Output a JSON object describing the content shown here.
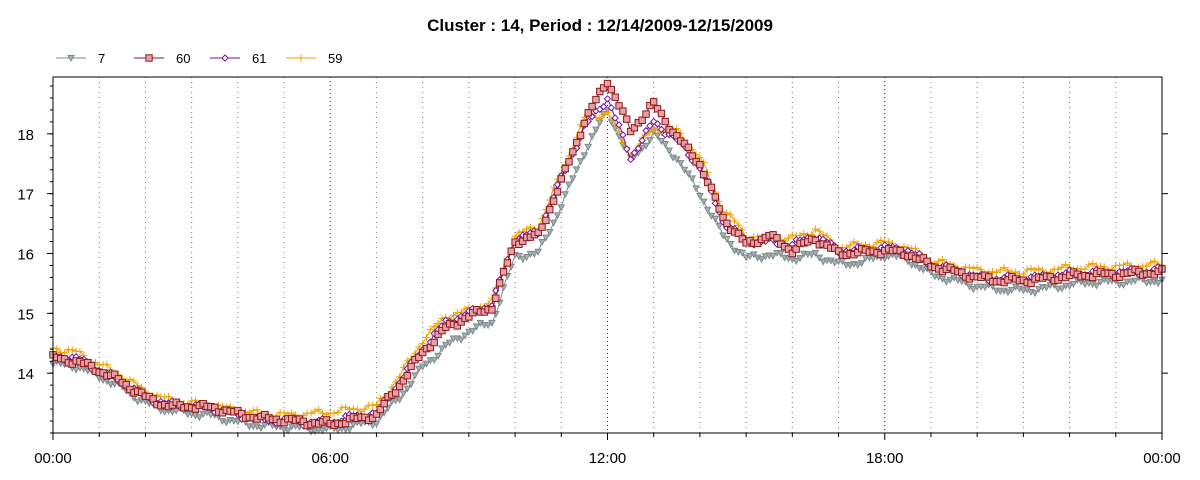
{
  "chart_data": {
    "type": "line",
    "title": "Cluster : 14, Period : 12/14/2009-12/15/2009",
    "xlabel": "",
    "ylabel": "",
    "x_range": [
      "00:00",
      "24:00"
    ],
    "x_tick_labels": [
      "00:00",
      "06:00",
      "12:00",
      "18:00",
      "00:00"
    ],
    "ylim": [
      13.0,
      18.95
    ],
    "y_ticks": [
      14,
      15,
      16,
      17,
      18
    ],
    "grid": true,
    "legend": "top-left",
    "series": [
      {
        "name": "7",
        "color": "#7d8a8c",
        "marker": "triangle-down",
        "points": [
          [
            "00:00",
            14.15
          ],
          [
            "00:30",
            14.12
          ],
          [
            "01:00",
            13.95
          ],
          [
            "01:30",
            13.75
          ],
          [
            "02:00",
            13.5
          ],
          [
            "02:30",
            13.38
          ],
          [
            "03:00",
            13.33
          ],
          [
            "03:30",
            13.28
          ],
          [
            "04:00",
            13.18
          ],
          [
            "04:30",
            13.12
          ],
          [
            "05:00",
            13.1
          ],
          [
            "05:30",
            13.08
          ],
          [
            "06:00",
            13.05
          ],
          [
            "06:30",
            13.12
          ],
          [
            "07:00",
            13.2
          ],
          [
            "07:30",
            13.6
          ],
          [
            "08:00",
            14.1
          ],
          [
            "08:30",
            14.45
          ],
          [
            "09:00",
            14.7
          ],
          [
            "09:30",
            14.85
          ],
          [
            "10:00",
            15.95
          ],
          [
            "10:30",
            16.0
          ],
          [
            "11:00",
            16.8
          ],
          [
            "11:30",
            17.7
          ],
          [
            "12:00",
            18.4
          ],
          [
            "12:30",
            17.55
          ],
          [
            "13:00",
            18.0
          ],
          [
            "13:30",
            17.6
          ],
          [
            "14:00",
            17.0
          ],
          [
            "14:30",
            16.3
          ],
          [
            "15:00",
            15.92
          ],
          [
            "15:30",
            15.98
          ],
          [
            "16:00",
            15.92
          ],
          [
            "16:30",
            15.98
          ],
          [
            "17:00",
            15.82
          ],
          [
            "17:30",
            15.85
          ],
          [
            "18:00",
            15.98
          ],
          [
            "18:30",
            15.9
          ],
          [
            "19:00",
            15.65
          ],
          [
            "19:30",
            15.55
          ],
          [
            "20:00",
            15.45
          ],
          [
            "20:30",
            15.4
          ],
          [
            "21:00",
            15.38
          ],
          [
            "21:30",
            15.42
          ],
          [
            "22:00",
            15.48
          ],
          [
            "22:30",
            15.52
          ],
          [
            "23:00",
            15.52
          ],
          [
            "23:30",
            15.54
          ],
          [
            "24:00",
            15.55
          ]
        ]
      },
      {
        "name": "60",
        "color": "#8b1a1a",
        "marker": "square",
        "points": [
          [
            "00:00",
            14.25
          ],
          [
            "00:30",
            14.2
          ],
          [
            "01:00",
            14.05
          ],
          [
            "01:30",
            13.85
          ],
          [
            "02:00",
            13.6
          ],
          [
            "02:30",
            13.45
          ],
          [
            "03:00",
            13.45
          ],
          [
            "03:30",
            13.42
          ],
          [
            "04:00",
            13.32
          ],
          [
            "04:30",
            13.25
          ],
          [
            "05:00",
            13.22
          ],
          [
            "05:30",
            13.18
          ],
          [
            "06:00",
            13.15
          ],
          [
            "06:30",
            13.22
          ],
          [
            "07:00",
            13.3
          ],
          [
            "07:30",
            13.8
          ],
          [
            "08:00",
            14.35
          ],
          [
            "08:30",
            14.75
          ],
          [
            "09:00",
            14.95
          ],
          [
            "09:30",
            15.1
          ],
          [
            "10:00",
            16.2
          ],
          [
            "10:30",
            16.3
          ],
          [
            "11:00",
            17.2
          ],
          [
            "11:30",
            18.2
          ],
          [
            "12:00",
            18.9
          ],
          [
            "12:30",
            18.05
          ],
          [
            "13:00",
            18.5
          ],
          [
            "13:30",
            17.95
          ],
          [
            "14:00",
            17.5
          ],
          [
            "14:30",
            16.6
          ],
          [
            "15:00",
            16.15
          ],
          [
            "15:30",
            16.3
          ],
          [
            "16:00",
            16.05
          ],
          [
            "16:30",
            16.25
          ],
          [
            "17:00",
            16.0
          ],
          [
            "17:30",
            16.02
          ],
          [
            "18:00",
            16.05
          ],
          [
            "18:30",
            16.0
          ],
          [
            "19:00",
            15.8
          ],
          [
            "19:30",
            15.7
          ],
          [
            "20:00",
            15.6
          ],
          [
            "20:30",
            15.55
          ],
          [
            "21:00",
            15.55
          ],
          [
            "21:30",
            15.58
          ],
          [
            "22:00",
            15.62
          ],
          [
            "22:30",
            15.65
          ],
          [
            "23:00",
            15.65
          ],
          [
            "23:30",
            15.68
          ],
          [
            "24:00",
            15.68
          ]
        ]
      },
      {
        "name": "61",
        "color": "#7a0f9e",
        "marker": "diamond",
        "points": [
          [
            "00:00",
            14.28
          ],
          [
            "00:30",
            14.25
          ],
          [
            "01:00",
            14.05
          ],
          [
            "01:30",
            13.85
          ],
          [
            "02:00",
            13.6
          ],
          [
            "02:30",
            13.48
          ],
          [
            "03:00",
            13.45
          ],
          [
            "03:30",
            13.4
          ],
          [
            "04:00",
            13.3
          ],
          [
            "04:30",
            13.22
          ],
          [
            "05:00",
            13.2
          ],
          [
            "05:30",
            13.18
          ],
          [
            "06:00",
            13.18
          ],
          [
            "06:30",
            13.28
          ],
          [
            "07:00",
            13.32
          ],
          [
            "07:30",
            13.85
          ],
          [
            "08:00",
            14.4
          ],
          [
            "08:30",
            14.85
          ],
          [
            "09:00",
            15.0
          ],
          [
            "09:30",
            15.15
          ],
          [
            "10:00",
            16.25
          ],
          [
            "10:30",
            16.35
          ],
          [
            "11:00",
            17.25
          ],
          [
            "11:30",
            18.1
          ],
          [
            "12:00",
            18.6
          ],
          [
            "12:30",
            17.6
          ],
          [
            "13:00",
            18.2
          ],
          [
            "13:30",
            17.9
          ],
          [
            "14:00",
            17.45
          ],
          [
            "14:30",
            16.55
          ],
          [
            "15:00",
            16.2
          ],
          [
            "15:30",
            16.2
          ],
          [
            "16:00",
            16.15
          ],
          [
            "16:30",
            16.3
          ],
          [
            "17:00",
            16.05
          ],
          [
            "17:30",
            16.05
          ],
          [
            "18:00",
            16.1
          ],
          [
            "18:30",
            16.05
          ],
          [
            "19:00",
            15.82
          ],
          [
            "19:30",
            15.72
          ],
          [
            "20:00",
            15.6
          ],
          [
            "20:30",
            15.58
          ],
          [
            "21:00",
            15.58
          ],
          [
            "21:30",
            15.62
          ],
          [
            "22:00",
            15.66
          ],
          [
            "22:30",
            15.68
          ],
          [
            "23:00",
            15.68
          ],
          [
            "23:30",
            15.7
          ],
          [
            "24:00",
            15.72
          ]
        ]
      },
      {
        "name": "59",
        "color": "#f0a000",
        "marker": "plus",
        "points": [
          [
            "00:00",
            14.42
          ],
          [
            "00:30",
            14.35
          ],
          [
            "01:00",
            14.15
          ],
          [
            "01:30",
            13.95
          ],
          [
            "02:00",
            13.7
          ],
          [
            "02:30",
            13.55
          ],
          [
            "03:00",
            13.5
          ],
          [
            "03:30",
            13.45
          ],
          [
            "04:00",
            13.38
          ],
          [
            "04:30",
            13.32
          ],
          [
            "05:00",
            13.3
          ],
          [
            "05:30",
            13.32
          ],
          [
            "06:00",
            13.35
          ],
          [
            "06:30",
            13.4
          ],
          [
            "07:00",
            13.45
          ],
          [
            "07:30",
            13.95
          ],
          [
            "08:00",
            14.55
          ],
          [
            "08:30",
            14.95
          ],
          [
            "09:00",
            15.05
          ],
          [
            "09:30",
            15.2
          ],
          [
            "10:00",
            16.3
          ],
          [
            "10:30",
            16.45
          ],
          [
            "11:00",
            17.35
          ],
          [
            "11:30",
            18.25
          ],
          [
            "12:00",
            18.35
          ],
          [
            "12:30",
            17.65
          ],
          [
            "13:00",
            18.1
          ],
          [
            "13:30",
            18.05
          ],
          [
            "14:00",
            17.6
          ],
          [
            "14:30",
            16.75
          ],
          [
            "15:00",
            16.3
          ],
          [
            "15:30",
            16.25
          ],
          [
            "16:00",
            16.25
          ],
          [
            "16:30",
            16.4
          ],
          [
            "17:00",
            16.1
          ],
          [
            "17:30",
            16.15
          ],
          [
            "18:00",
            16.18
          ],
          [
            "18:30",
            16.1
          ],
          [
            "19:00",
            15.88
          ],
          [
            "19:30",
            15.8
          ],
          [
            "20:00",
            15.72
          ],
          [
            "20:30",
            15.7
          ],
          [
            "21:00",
            15.7
          ],
          [
            "21:30",
            15.72
          ],
          [
            "22:00",
            15.76
          ],
          [
            "22:30",
            15.78
          ],
          [
            "23:00",
            15.78
          ],
          [
            "23:30",
            15.8
          ],
          [
            "24:00",
            15.82
          ]
        ]
      }
    ]
  }
}
